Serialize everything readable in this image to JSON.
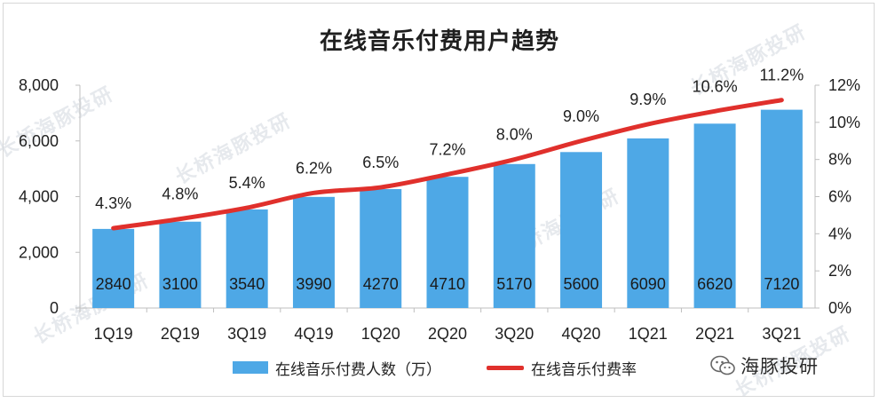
{
  "chart_data": {
    "type": "bar+line",
    "title": "在线音乐付费用户趋势",
    "categories": [
      "1Q19",
      "2Q19",
      "3Q19",
      "4Q19",
      "1Q20",
      "2Q20",
      "3Q20",
      "4Q20",
      "1Q21",
      "2Q21",
      "3Q21"
    ],
    "series": [
      {
        "name": "在线音乐付费人数（万）",
        "type": "bar",
        "axis": "left",
        "values": [
          2840,
          3100,
          3540,
          3990,
          4270,
          4710,
          5170,
          5600,
          6090,
          6620,
          7120
        ],
        "labels": [
          "2840",
          "3100",
          "3540",
          "3990",
          "4270",
          "4710",
          "5170",
          "5600",
          "6090",
          "6620",
          "7120"
        ]
      },
      {
        "name": "在线音乐付费率",
        "type": "line",
        "axis": "right",
        "values": [
          4.3,
          4.8,
          5.4,
          6.2,
          6.5,
          7.2,
          8.0,
          9.0,
          9.9,
          10.6,
          11.2
        ],
        "labels": [
          "4.3%",
          "4.8%",
          "5.4%",
          "6.2%",
          "6.5%",
          "7.2%",
          "8.0%",
          "9.0%",
          "9.9%",
          "10.6%",
          "11.2%"
        ]
      }
    ],
    "y_left": {
      "min": 0,
      "max": 8000,
      "ticks": [
        "0",
        "2,000",
        "4,000",
        "6,000",
        "8,000"
      ],
      "tick_values": [
        0,
        2000,
        4000,
        6000,
        8000
      ]
    },
    "y_right": {
      "min": 0,
      "max": 12,
      "ticks": [
        "0%",
        "2%",
        "4%",
        "6%",
        "8%",
        "10%",
        "12%"
      ],
      "tick_values": [
        0,
        2,
        4,
        6,
        8,
        10,
        12
      ]
    },
    "legend_position": "bottom",
    "grid": false
  },
  "legend": {
    "bar_label": "在线音乐付费人数（万）",
    "line_label": "在线音乐付费率"
  },
  "brand": {
    "name": "海豚投研"
  },
  "watermark": {
    "text": "长桥海豚投研"
  },
  "colors": {
    "bar": "#4ea8e6",
    "line": "#e0302c",
    "text": "#1f1f1f",
    "axis": "#bfbfbf"
  }
}
